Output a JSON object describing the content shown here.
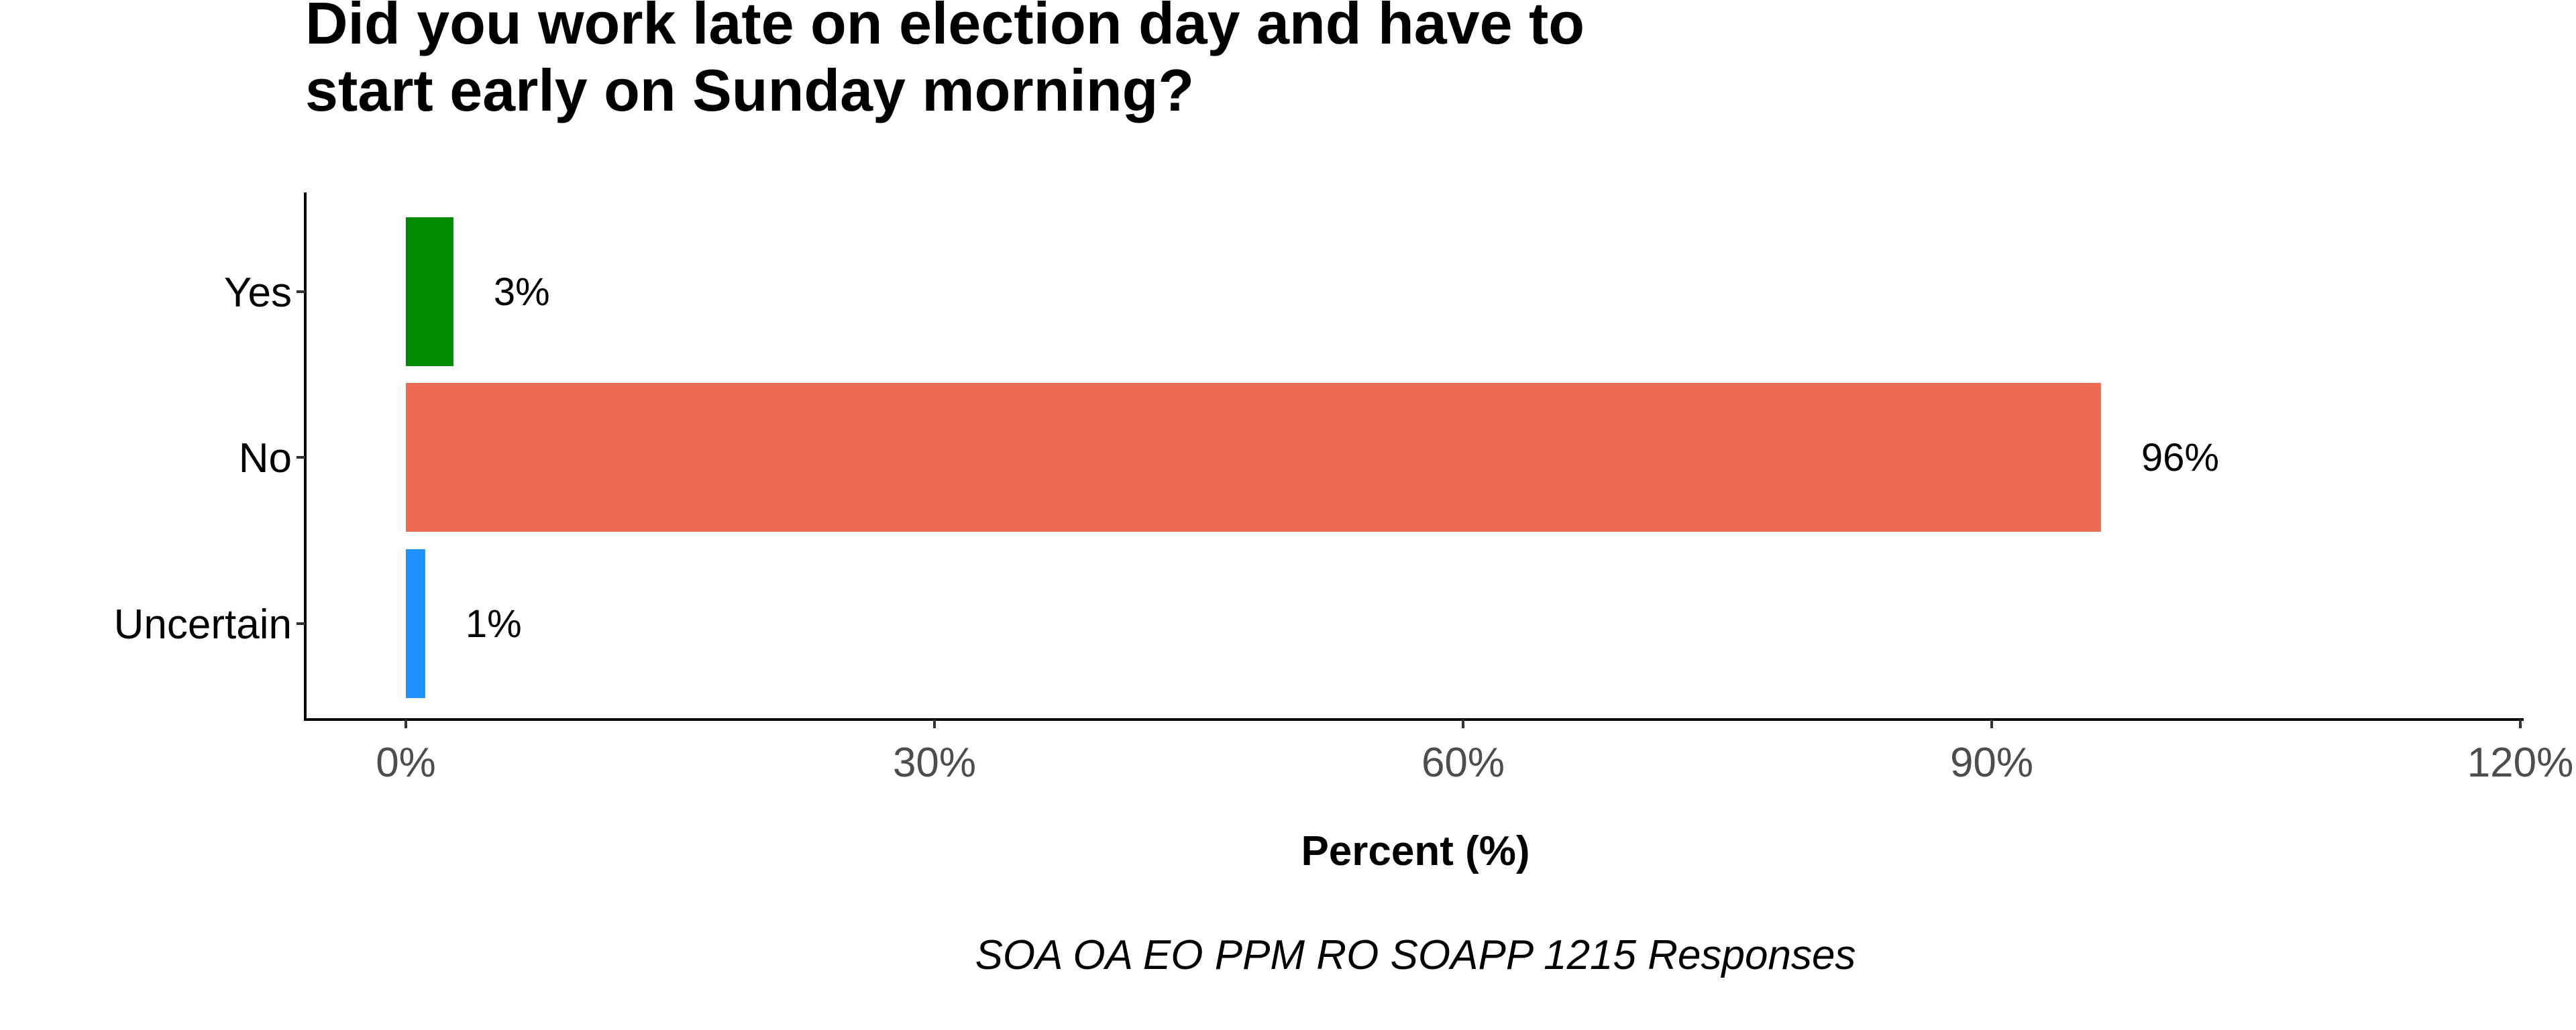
{
  "chart_data": {
    "type": "bar",
    "orientation": "horizontal",
    "title": "Did you work late on election day and have to start early on Sunday morning?",
    "title_lines": [
      "Did you work late on election day and have to",
      "start early on Sunday morning?"
    ],
    "categories": [
      "Yes",
      "No",
      "Uncertain"
    ],
    "values": [
      2.7,
      96.2,
      1.1
    ],
    "data_labels": [
      "3%",
      "96%",
      "1%"
    ],
    "colors": [
      "#008B00",
      "#EE6A50",
      "#1E90FF"
    ],
    "xlabel": "Percent (%)",
    "ylabel": "",
    "xlim": [
      0,
      120
    ],
    "xticks": [
      0,
      30,
      60,
      90,
      120
    ],
    "xtick_labels": [
      "0%",
      "30%",
      "60%",
      "90%",
      "120%"
    ],
    "caption": "SOA OA EO PPM RO SOAPP 1215 Responses",
    "grid": false,
    "legend": "none"
  }
}
